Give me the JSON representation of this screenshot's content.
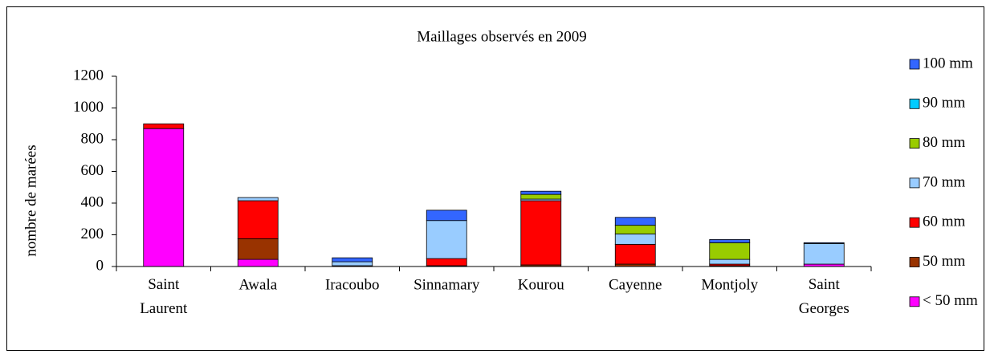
{
  "chart_data": {
    "type": "bar",
    "stacked": true,
    "title": "Maillages observés en 2009",
    "y_label": "nombre de marées",
    "categories": [
      "Saint Laurent",
      "Awala",
      "Iracoubo",
      "Sinnamary",
      "Kourou",
      "Cayenne",
      "Montjoly",
      "Saint Georges"
    ],
    "series": [
      {
        "name": "< 50 mm",
        "color": "#ff00ff",
        "values": [
          870,
          45,
          5,
          5,
          0,
          0,
          0,
          15
        ]
      },
      {
        "name": "50 mm",
        "color": "#993300",
        "values": [
          0,
          130,
          0,
          0,
          10,
          15,
          5,
          0
        ]
      },
      {
        "name": "60 mm",
        "color": "#ff0000",
        "values": [
          30,
          240,
          0,
          45,
          405,
          125,
          10,
          0
        ]
      },
      {
        "name": "70 mm",
        "color": "#99ccff",
        "values": [
          0,
          20,
          25,
          240,
          10,
          65,
          30,
          130
        ]
      },
      {
        "name": "80 mm",
        "color": "#99cc00",
        "values": [
          0,
          0,
          0,
          0,
          30,
          55,
          105,
          0
        ]
      },
      {
        "name": "90 mm",
        "color": "#00ccff",
        "values": [
          0,
          0,
          0,
          0,
          0,
          0,
          0,
          0
        ]
      },
      {
        "name": "100 mm",
        "color": "#3366ff",
        "values": [
          0,
          0,
          25,
          65,
          20,
          50,
          20,
          5
        ]
      }
    ],
    "ylim": [
      0,
      1200
    ],
    "yticks": [
      0,
      200,
      400,
      600,
      800,
      1000,
      1200
    ],
    "legend": "right"
  }
}
